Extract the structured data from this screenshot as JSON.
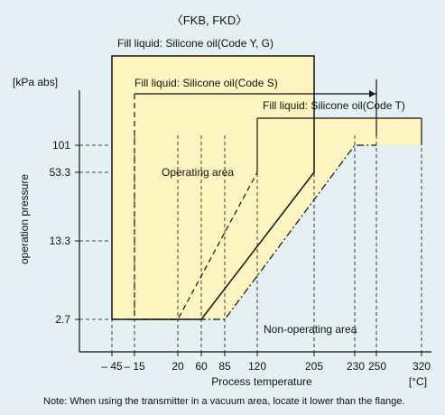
{
  "chart_data": {
    "type": "area",
    "title": "〈FKB, FKD〉",
    "xlabel": "Process temperature",
    "xunit": "[°C]",
    "ylabel": "operation pressure",
    "yunit": "[kPa  abs]",
    "x_ticks": [
      {
        "value": -45,
        "label": "– 45"
      },
      {
        "value": -15,
        "label": "– 15"
      },
      {
        "value": 20,
        "label": "20"
      },
      {
        "value": 60,
        "label": "60"
      },
      {
        "value": 85,
        "label": "85"
      },
      {
        "value": 120,
        "label": "120"
      },
      {
        "value": 205,
        "label": "205"
      },
      {
        "value": 230,
        "label": "230"
      },
      {
        "value": 250,
        "label": "250"
      },
      {
        "value": 320,
        "label": "320"
      }
    ],
    "y_ticks": [
      {
        "value": 2.7,
        "label": "2.7"
      },
      {
        "value": 13.3,
        "label": "13.3"
      },
      {
        "value": 53.3,
        "label": "53.3"
      },
      {
        "value": 101,
        "label": "101"
      }
    ],
    "region_labels": {
      "operating": "Operating area",
      "non_operating": "Non-operating area"
    },
    "series": [
      {
        "name": "Fill liquid: Silicone oil(Code Y, G)",
        "style": "solid",
        "points": [
          [
            -45,
            2.7
          ],
          [
            60,
            2.7
          ],
          [
            205,
            53.3
          ]
        ],
        "upper_limit_temperature": 205,
        "lower_limit_temperature": -45
      },
      {
        "name": "Fill liquid: Silicone oil(Code S)",
        "style": "dashed",
        "points": [
          [
            -15,
            2.7
          ],
          [
            20,
            2.7
          ],
          [
            120,
            53.3
          ]
        ],
        "upper_limit_temperature": 120,
        "lower_limit_temperature": -15,
        "range_arrow": [
          -15,
          250
        ]
      },
      {
        "name": "Fill liquid: Silicone oil(Code T)",
        "style": "dash-dot",
        "points": [
          [
            -45,
            2.7
          ],
          [
            85,
            2.7
          ],
          [
            230,
            101
          ],
          [
            250,
            101
          ]
        ],
        "range_arrow": [
          120,
          320
        ]
      }
    ],
    "note": "Note: When using the transmitter in a vacuum area, locate it lower than the flange."
  },
  "colors": {
    "background": "#e4f0f4",
    "operating_fill": "#fef4c0",
    "line": "#111111"
  }
}
